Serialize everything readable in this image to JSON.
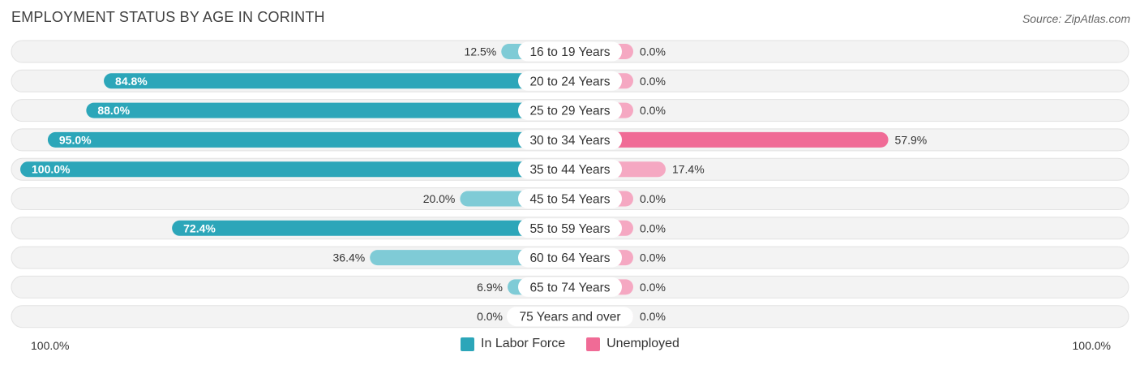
{
  "title": "EMPLOYMENT STATUS BY AGE IN CORINTH",
  "source": "Source: ZipAtlas.com",
  "colors": {
    "labor": "#2ca6b9",
    "labor_light": "#7fcbd6",
    "unemployed": "#f06b96",
    "unemployed_light": "#f5a8c2",
    "row_bg": "#eeeeee"
  },
  "chart_data": {
    "type": "bar",
    "categories": [
      "16 to 19 Years",
      "20 to 24 Years",
      "25 to 29 Years",
      "30 to 34 Years",
      "35 to 44 Years",
      "45 to 54 Years",
      "55 to 59 Years",
      "60 to 64 Years",
      "65 to 74 Years",
      "75 Years and over"
    ],
    "series": [
      {
        "name": "In Labor Force",
        "values": [
          12.5,
          84.8,
          88.0,
          95.0,
          100.0,
          20.0,
          72.4,
          36.4,
          6.9,
          0.0
        ],
        "labels": [
          "12.5%",
          "84.8%",
          "88.0%",
          "95.0%",
          "100.0%",
          "20.0%",
          "72.4%",
          "36.4%",
          "6.9%",
          "0.0%"
        ]
      },
      {
        "name": "Unemployed",
        "values": [
          0.0,
          0.0,
          0.0,
          57.9,
          17.4,
          0.0,
          0.0,
          0.0,
          0.0,
          0.0
        ],
        "labels": [
          "0.0%",
          "0.0%",
          "0.0%",
          "57.9%",
          "17.4%",
          "0.0%",
          "0.0%",
          "0.0%",
          "0.0%",
          "0.0%"
        ]
      }
    ],
    "xlim": [
      -100,
      100
    ],
    "axis_left_label": "100.0%",
    "axis_right_label": "100.0%",
    "legend": "bottom-center"
  }
}
